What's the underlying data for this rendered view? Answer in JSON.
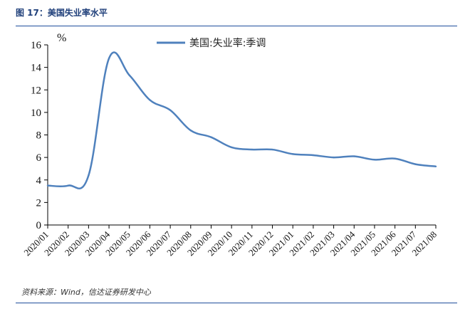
{
  "header": {
    "figure_title": "图 17：美国失业率水平"
  },
  "footer": {
    "source": "资料来源：Wind，信达证券研发中心"
  },
  "colors": {
    "line": "#4f81bd",
    "rule": "#1f4e9c",
    "title": "#1f3f7a"
  },
  "chart_data": {
    "type": "line",
    "title": "",
    "unit_label": "%",
    "xlabel": "",
    "ylabel": "",
    "ylim": [
      0,
      16
    ],
    "yticks": [
      0,
      2,
      4,
      6,
      8,
      10,
      12,
      14,
      16
    ],
    "grid": false,
    "legend": "top-center",
    "categories": [
      "2020/01",
      "2020/02",
      "2020/03",
      "2020/04",
      "2020/05",
      "2020/06",
      "2020/07",
      "2020/08",
      "2020/09",
      "2020/10",
      "2020/11",
      "2020/12",
      "2021/01",
      "2021/02",
      "2021/03",
      "2021/04",
      "2021/05",
      "2021/06",
      "2021/07",
      "2021/08"
    ],
    "series": [
      {
        "name": "美国:失业率:季调",
        "x": [
          "2020/01",
          "2020/02",
          "2020/03",
          "2020/04",
          "2020/05",
          "2020/06",
          "2020/07",
          "2020/08",
          "2020/09",
          "2020/10",
          "2020/11",
          "2020/12",
          "2021/01",
          "2021/02",
          "2021/03",
          "2021/04",
          "2021/05",
          "2021/06",
          "2021/07",
          "2021/08"
        ],
        "values": [
          3.5,
          3.5,
          4.4,
          14.8,
          13.3,
          11.1,
          10.2,
          8.4,
          7.8,
          6.9,
          6.7,
          6.7,
          6.3,
          6.2,
          6.0,
          6.1,
          5.8,
          5.9,
          5.4,
          5.2
        ]
      }
    ]
  }
}
